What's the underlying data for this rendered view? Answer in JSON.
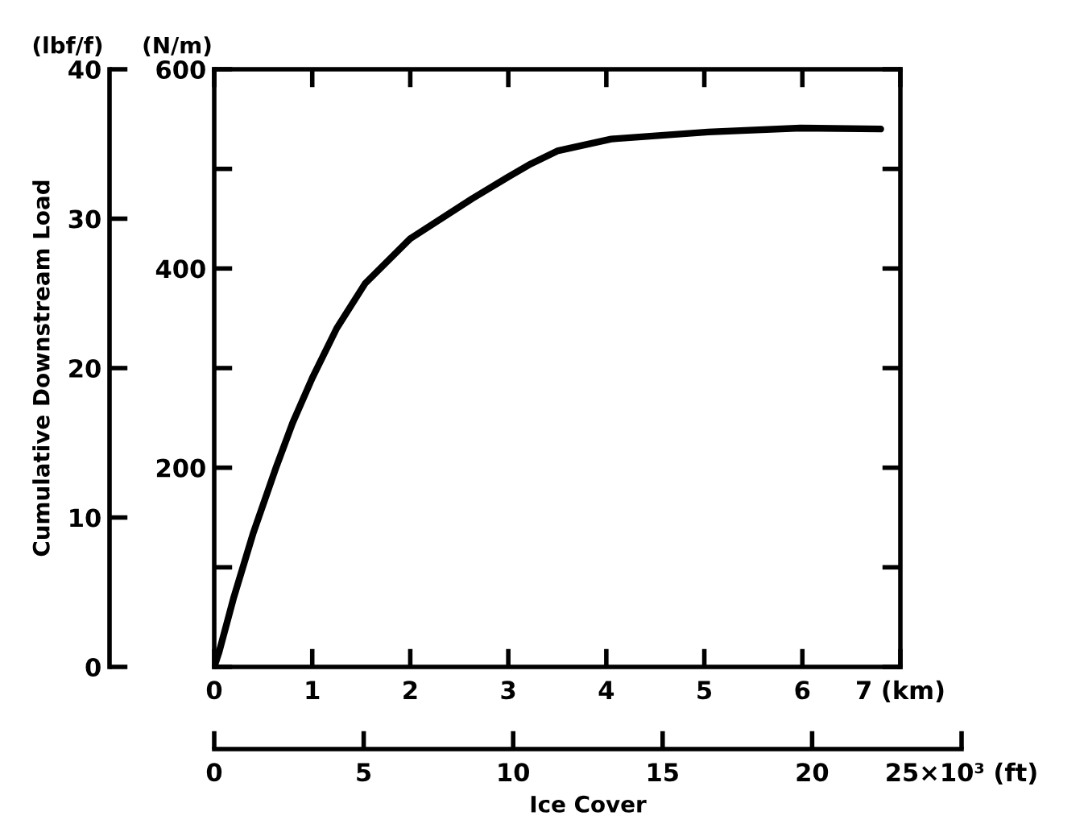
{
  "chart_data": {
    "type": "line",
    "x": [
      0,
      0.05,
      0.2,
      0.4,
      0.63,
      0.8,
      1.0,
      1.25,
      1.54,
      2.0,
      2.63,
      3.0,
      3.23,
      3.5,
      4.05,
      5.04,
      5.98,
      6.8
    ],
    "series": [
      {
        "color": "#000000",
        "values": [
          0,
          15,
          70,
          135,
          200,
          245,
          290,
          340,
          385,
          430,
          470,
          492,
          505,
          518,
          530,
          537,
          541,
          540
        ]
      }
    ],
    "y2label": "Cumulative Downstream Load",
    "annotations": [
      "(N/m)",
      "(lbf/f)"
    ],
    "xlim": [
      0,
      7
    ],
    "xticks": [
      0,
      1,
      2,
      3,
      4,
      5,
      6,
      {
        "value": 7,
        "label": "7 (km)"
      }
    ],
    "ylim": [
      0,
      600
    ],
    "yticks": [
      {
        "value": 0,
        "label": null
      },
      {
        "value": 100,
        "label": null
      },
      200,
      {
        "value": 300,
        "label": null
      },
      400,
      {
        "value": 500,
        "label": null
      },
      600
    ],
    "y2lim": [
      0,
      40
    ],
    "y2ticks": [
      0,
      10,
      20,
      30,
      40
    ],
    "x2lim": [
      0,
      25
    ],
    "x2ticks": [
      0,
      5,
      10,
      15,
      20,
      {
        "value": 25,
        "label": "25×10³ (ft)"
      }
    ],
    "x2label": "Ice Cover",
    "grid": false,
    "legend": false,
    "marker": "none",
    "line_style": "solid"
  }
}
